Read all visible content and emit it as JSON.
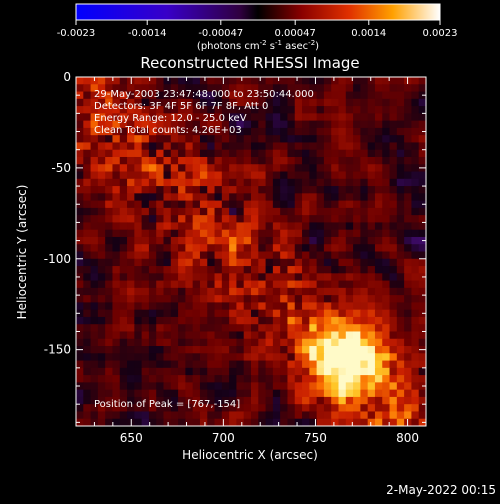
{
  "chart_data": {
    "type": "heatmap",
    "title": "Reconstructed RHESSI Image",
    "xlabel": "Heliocentric X (arcsec)",
    "ylabel": "Heliocentric Y (arcsec)",
    "xlim": [
      620,
      810
    ],
    "ylim": [
      -192,
      0
    ],
    "x_ticks": [
      650,
      700,
      750,
      800
    ],
    "y_ticks": [
      0,
      -50,
      -100,
      -150
    ],
    "colorbar": {
      "min": -0.0023,
      "max": 0.0023,
      "tick_labels": [
        "-0.0023",
        "-0.0014",
        "-0.00047",
        "0.00047",
        "0.0014",
        "0.0023"
      ],
      "unit_label": "(photons cm^-2 s^-1 asec^-2)"
    },
    "annotations": [
      "29-May-2003 23:47:48.000 to 23:50:44.000",
      "Detectors: 3F 4F 5F 6F 7F 8F, Att 0",
      "Energy Range: 12.0 - 25.0 keV",
      "Clean     Total counts: 4.26E+03"
    ],
    "peak_text": "Position of Peak = [767,-154]",
    "peak": {
      "x": 767,
      "y": -154
    },
    "grid": false
  },
  "footer": {
    "timestamp": "2-May-2022 00:15"
  }
}
